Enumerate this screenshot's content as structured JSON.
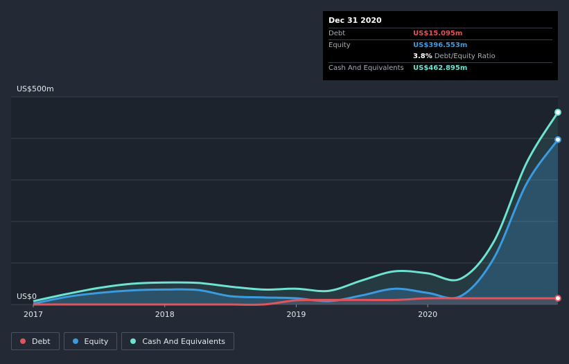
{
  "chart_data": {
    "type": "area",
    "y_unit_label_top": "US$500m",
    "y_unit_label_bottom": "US$0",
    "ylim": [
      0,
      500
    ],
    "xlim": [
      2017.0,
      2020.99
    ],
    "x_ticks": [
      {
        "value": 2017,
        "label": "2017"
      },
      {
        "value": 2018,
        "label": "2018"
      },
      {
        "value": 2019,
        "label": "2019"
      },
      {
        "value": 2020,
        "label": "2020"
      }
    ],
    "series": [
      {
        "name": "Cash And Equivalents",
        "color": "#6fe3d2",
        "x": [
          2017.0,
          2017.25,
          2017.5,
          2017.75,
          2018.0,
          2018.25,
          2018.5,
          2018.75,
          2019.0,
          2019.25,
          2019.5,
          2019.75,
          2020.0,
          2020.25,
          2020.5,
          2020.75,
          2020.99
        ],
        "values": [
          8,
          25,
          40,
          50,
          53,
          52,
          43,
          36,
          38,
          33,
          58,
          80,
          75,
          62,
          150,
          340,
          463
        ]
      },
      {
        "name": "Equity",
        "color": "#3b9be0",
        "x": [
          2017.0,
          2017.25,
          2017.5,
          2017.75,
          2018.0,
          2018.25,
          2018.5,
          2018.75,
          2019.0,
          2019.25,
          2019.5,
          2019.75,
          2020.0,
          2020.25,
          2020.5,
          2020.75,
          2020.99
        ],
        "values": [
          2,
          18,
          28,
          34,
          36,
          35,
          20,
          17,
          15,
          8,
          22,
          38,
          28,
          20,
          110,
          290,
          397
        ]
      },
      {
        "name": "Debt",
        "color": "#e0545b",
        "x": [
          2017.0,
          2017.25,
          2017.5,
          2017.75,
          2018.0,
          2018.25,
          2018.5,
          2018.75,
          2019.0,
          2019.25,
          2019.5,
          2019.75,
          2020.0,
          2020.25,
          2020.5,
          2020.75,
          2020.99
        ],
        "values": [
          0,
          0,
          0,
          0,
          0,
          0,
          0,
          0,
          10,
          11,
          11,
          11,
          15,
          15,
          15,
          15,
          15
        ]
      }
    ],
    "grid": true,
    "legend_position": "bottom-left"
  },
  "tooltip": {
    "date": "Dec 31 2020",
    "rows": [
      {
        "label": "Debt",
        "value": "US$15.095m",
        "color": "#e0545b"
      },
      {
        "label": "Equity",
        "value": "US$396.553m",
        "color": "#3b9be0"
      },
      {
        "label": "",
        "value": "3.8%",
        "suffix": "Debt/Equity Ratio",
        "color": "#ffffff"
      },
      {
        "label": "Cash And Equivalents",
        "value": "US$462.895m",
        "color": "#6fe3d2"
      }
    ]
  },
  "legend": [
    {
      "label": "Debt",
      "color": "#e0545b"
    },
    {
      "label": "Equity",
      "color": "#3b9be0"
    },
    {
      "label": "Cash And Equivalents",
      "color": "#6fe3d2"
    }
  ]
}
